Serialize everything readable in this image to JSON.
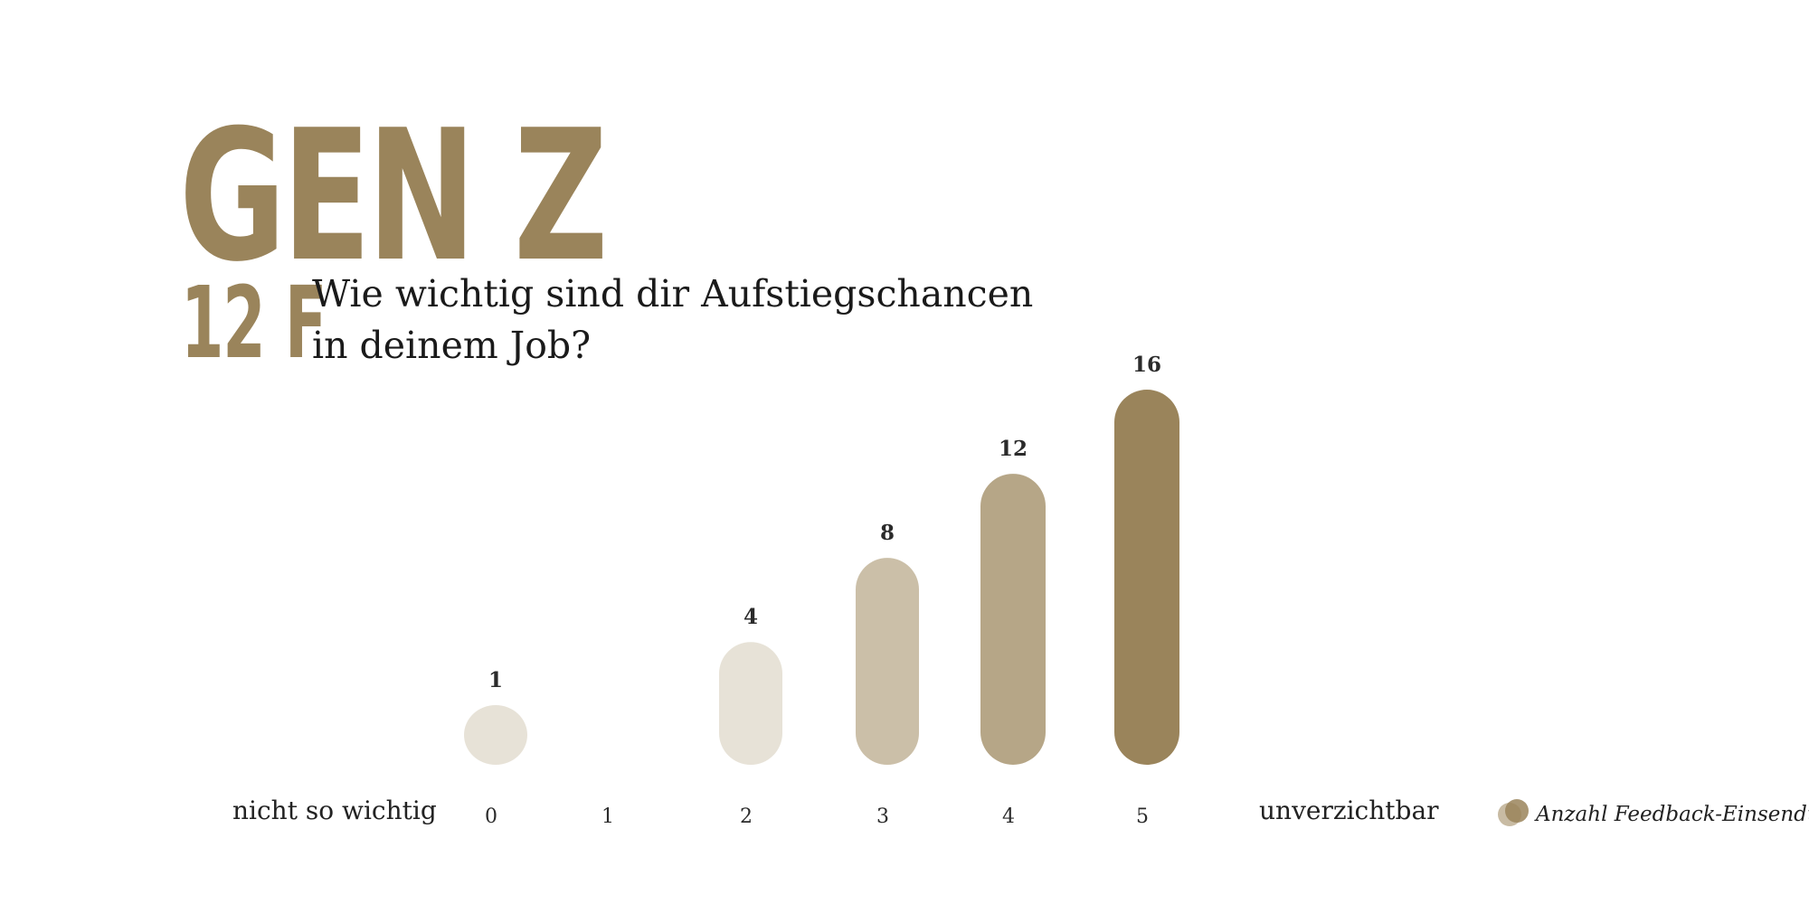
{
  "header": {
    "title": "GEN Z",
    "code": "12 F",
    "question": "Wie wichtig sind dir Aufstiegschancen\nin deinem Job?"
  },
  "scale": {
    "low_label": "nicht so wichtig",
    "high_label": "unverzichtbar"
  },
  "legend": {
    "label": "Anzahl Feedback-Einsendungen"
  },
  "chart_data": {
    "type": "bar",
    "categories": [
      "0",
      "1",
      "2",
      "3",
      "4",
      "5"
    ],
    "values": [
      1,
      0,
      4,
      8,
      12,
      16
    ],
    "value_labels": [
      "1",
      "",
      "4",
      "8",
      "12",
      "16"
    ],
    "series": [
      {
        "name": "Anzahl Feedback-Einsendungen",
        "values": [
          1,
          0,
          4,
          8,
          12,
          16
        ]
      }
    ],
    "colors": [
      "#e7e2d7",
      "#e7e2d7",
      "#e7e2d7",
      "#cbbfa8",
      "#b6a687",
      "#9a845b"
    ],
    "xlabel": "",
    "ylabel": "",
    "ylim": [
      0,
      16
    ],
    "grid": false,
    "legend_position": "bottom-right"
  }
}
